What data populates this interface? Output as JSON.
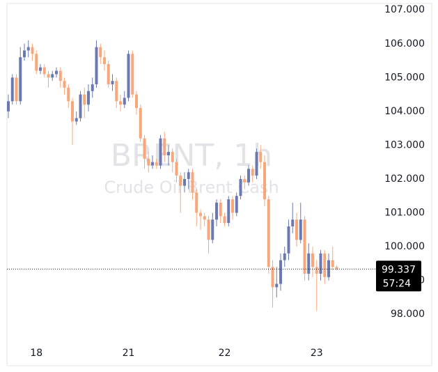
{
  "chart_data": {
    "type": "candlestick",
    "watermark": [
      "BRENT, 1h",
      "Crude Oil Brent Cash"
    ],
    "categories": [
      null,
      null,
      null,
      null,
      null,
      null,
      null,
      "18",
      null,
      null,
      null,
      null,
      null,
      null,
      null,
      null,
      null,
      null,
      null,
      null,
      null,
      null,
      null,
      null,
      null,
      null,
      null,
      null,
      null,
      null,
      "21",
      null,
      null,
      null,
      null,
      null,
      null,
      null,
      null,
      null,
      null,
      null,
      null,
      null,
      null,
      null,
      null,
      null,
      null,
      null,
      null,
      null,
      null,
      null,
      "22",
      null,
      null,
      null,
      null,
      null,
      null,
      null,
      null,
      null,
      null,
      null,
      null,
      null,
      null,
      null,
      null,
      null,
      null,
      null,
      null,
      null,
      null,
      "23",
      null,
      null,
      null,
      null,
      null
    ],
    "open": [
      104.0,
      104.3,
      105.0,
      104.3,
      105.6,
      105.8,
      105.9,
      105.7,
      105.2,
      105.3,
      105.1,
      105.0,
      105.1,
      105.2,
      104.9,
      104.7,
      104.3,
      103.7,
      103.8,
      104.5,
      104.2,
      104.6,
      104.8,
      105.9,
      105.6,
      105.4,
      104.8,
      104.9,
      104.3,
      104.2,
      104.4,
      105.7,
      104.5,
      104.1,
      103.2,
      102.6,
      102.4,
      102.5,
      102.4,
      103.2,
      102.7,
      102.8,
      102.5,
      102.1,
      101.8,
      102.0,
      102.2,
      101.6,
      101.0,
      100.9,
      100.8,
      100.2,
      100.8,
      101.3,
      100.9,
      100.7,
      101.4,
      101.0,
      101.5,
      102.0,
      101.9,
      102.3,
      102.1,
      102.8,
      102.5,
      101.4,
      99.4,
      98.8,
      98.9,
      99.6,
      99.8,
      100.6,
      100.8,
      100.2,
      100.8,
      99.2,
      99.8,
      99.4,
      99.2,
      99.8,
      99.1,
      99.6,
      99.4
    ],
    "high": [
      104.5,
      105.1,
      105.1,
      105.9,
      106.0,
      106.1,
      106.0,
      105.8,
      105.4,
      105.4,
      105.2,
      105.2,
      105.3,
      105.3,
      105.0,
      104.8,
      104.4,
      104.0,
      104.6,
      104.7,
      104.8,
      105.0,
      106.1,
      106.0,
      105.8,
      105.5,
      105.1,
      105.0,
      104.5,
      104.6,
      105.8,
      105.8,
      104.6,
      104.2,
      103.3,
      102.8,
      102.7,
      102.6,
      103.3,
      103.4,
      103.0,
      102.9,
      102.6,
      102.2,
      102.2,
      102.3,
      102.3,
      101.7,
      101.1,
      101.0,
      100.9,
      101.0,
      101.4,
      101.4,
      101.0,
      101.5,
      101.5,
      101.6,
      102.1,
      102.1,
      102.4,
      102.4,
      102.9,
      103.0,
      102.7,
      101.5,
      99.6,
      99.4,
      99.8,
      100.0,
      100.8,
      101.3,
      101.0,
      101.3,
      100.9,
      100.1,
      100.0,
      99.6,
      99.9,
      99.9,
      99.8,
      100.0,
      99.45
    ],
    "low": [
      103.8,
      104.2,
      104.2,
      104.2,
      105.5,
      105.6,
      105.5,
      105.1,
      105.1,
      105.0,
      104.7,
      104.9,
      105.0,
      104.7,
      104.5,
      104.1,
      103.0,
      103.6,
      103.7,
      103.8,
      104.0,
      104.4,
      104.7,
      105.4,
      105.2,
      104.7,
      104.6,
      104.1,
      104.0,
      104.1,
      104.3,
      104.4,
      103.9,
      103.1,
      102.3,
      102.2,
      102.3,
      102.3,
      102.3,
      102.5,
      102.4,
      102.2,
      101.9,
      101.0,
      101.6,
      101.7,
      101.4,
      100.6,
      100.5,
      100.6,
      99.8,
      100.1,
      100.6,
      100.7,
      100.6,
      100.6,
      100.8,
      100.9,
      101.4,
      101.7,
      101.8,
      101.9,
      102.0,
      102.3,
      101.2,
      99.2,
      98.2,
      98.5,
      98.7,
      99.4,
      99.6,
      100.4,
      100.0,
      100.1,
      99.0,
      99.0,
      99.1,
      98.1,
      99.0,
      98.9,
      99.0,
      99.3,
      99.3
    ],
    "close": [
      104.3,
      105.0,
      104.3,
      105.6,
      105.8,
      105.9,
      105.7,
      105.2,
      105.3,
      105.1,
      105.0,
      105.1,
      105.2,
      104.9,
      104.7,
      104.3,
      103.7,
      103.8,
      104.5,
      104.2,
      104.6,
      104.8,
      105.9,
      105.6,
      105.4,
      104.8,
      104.9,
      104.3,
      104.2,
      104.4,
      105.7,
      104.5,
      104.1,
      103.2,
      102.6,
      102.4,
      102.5,
      102.4,
      103.2,
      102.7,
      102.8,
      102.5,
      102.1,
      101.8,
      102.0,
      102.2,
      101.6,
      101.0,
      100.9,
      100.8,
      100.2,
      100.8,
      101.3,
      100.9,
      100.7,
      101.4,
      101.0,
      101.5,
      102.0,
      101.9,
      102.3,
      102.1,
      102.8,
      102.5,
      101.4,
      99.4,
      98.8,
      98.9,
      99.6,
      99.8,
      100.6,
      100.8,
      100.2,
      100.8,
      99.2,
      99.8,
      99.4,
      99.2,
      99.8,
      99.1,
      99.6,
      99.4,
      99.337
    ],
    "up_color": "#6b79b3",
    "down_color": "#f7a77a",
    "ylim": [
      97.2,
      107.19
    ],
    "yticks": [
      {
        "value": 98,
        "label": "98.000"
      },
      {
        "value": 99,
        "label": "99.000"
      },
      {
        "value": 100,
        "label": "100.000"
      },
      {
        "value": 101,
        "label": "101.000"
      },
      {
        "value": 102,
        "label": "102.000"
      },
      {
        "value": 103,
        "label": "103.000"
      },
      {
        "value": 104,
        "label": "104.000"
      },
      {
        "value": 105,
        "label": "105.000"
      },
      {
        "value": 106,
        "label": "106.000"
      },
      {
        "value": 107,
        "label": "107.000"
      }
    ],
    "last_price": {
      "value": 99.337,
      "label": "99.337"
    },
    "countdown": "57:24"
  }
}
